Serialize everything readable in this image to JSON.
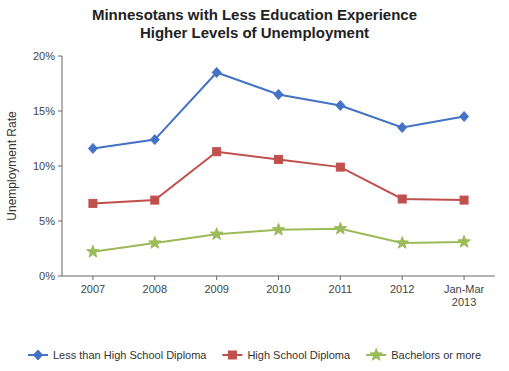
{
  "chart_data": {
    "type": "line",
    "title": "Minnesotans with Less Education Experience\nHigher Levels of Unemployment",
    "y_label": "Unemployment Rate",
    "categories": [
      "2007",
      "2008",
      "2009",
      "2010",
      "2011",
      "2012",
      "Jan-Mar\n2013"
    ],
    "series": [
      {
        "name": "Less than High School Diploma",
        "color": "#4472C4",
        "marker": "diamond",
        "values": [
          11.6,
          12.4,
          18.5,
          16.5,
          15.5,
          13.5,
          14.5
        ]
      },
      {
        "name": "High School Diploma",
        "color": "#C0504D",
        "marker": "square",
        "values": [
          6.6,
          6.9,
          11.3,
          10.6,
          9.9,
          7.0,
          6.9
        ]
      },
      {
        "name": "Bachelors or more",
        "color": "#9BBB59",
        "marker": "star",
        "values": [
          2.2,
          3.0,
          3.8,
          4.2,
          4.3,
          3.0,
          3.1
        ]
      }
    ],
    "ylim": [
      0,
      20
    ],
    "yticks": [
      {
        "value": 0,
        "label": "0%"
      },
      {
        "value": 5,
        "label": "5%"
      },
      {
        "value": 10,
        "label": "10%"
      },
      {
        "value": 15,
        "label": "15%"
      },
      {
        "value": 20,
        "label": "20%"
      }
    ],
    "grid": false,
    "legend": "bottom"
  }
}
